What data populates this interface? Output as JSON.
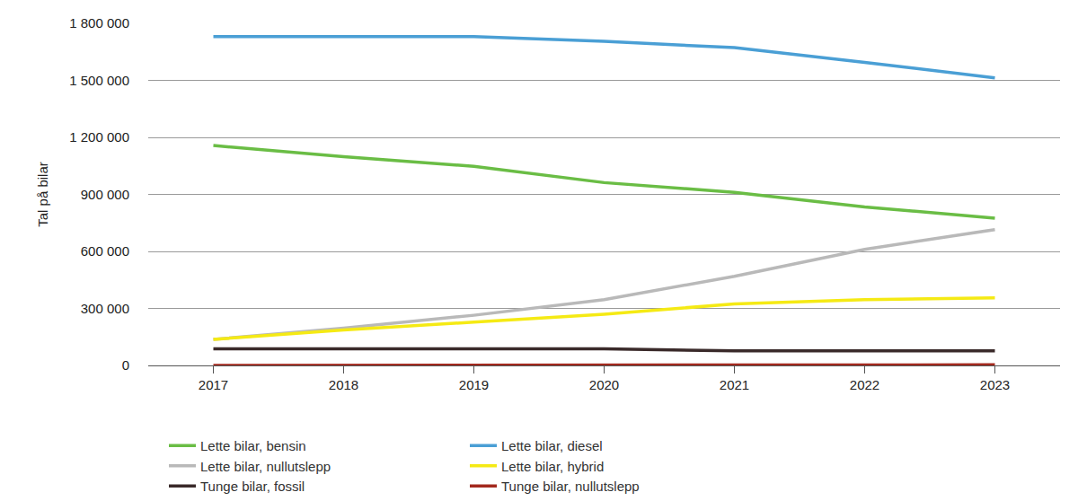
{
  "chart_data": {
    "type": "line",
    "y_label": "Tal på bilar",
    "x": [
      2017,
      2018,
      2019,
      2020,
      2021,
      2022,
      2023
    ],
    "xlim": [
      2016.5,
      2023.5
    ],
    "xticks": [
      2017,
      2018,
      2019,
      2020,
      2021,
      2022,
      2023
    ],
    "ylim": [
      0,
      1800000
    ],
    "yticks": [
      0,
      {
        "value": 300000,
        "label": "300 000"
      },
      {
        "value": 600000,
        "label": "600 000"
      },
      {
        "value": 900000,
        "label": "900 000"
      },
      {
        "value": 1200000,
        "label": "1 200 000"
      },
      {
        "value": 1500000,
        "label": "1 500 000"
      },
      {
        "value": 1800000,
        "label": "1 800 000"
      }
    ],
    "grid": true,
    "legend": "bottom",
    "series": [
      {
        "name": "Lette bilar, bensin",
        "color": "#6abd45",
        "values": [
          1157000,
          1098000,
          1048000,
          962000,
          911000,
          834000,
          775000
        ]
      },
      {
        "name": "Lette bilar, diesel",
        "color": "#4a9fd5",
        "values": [
          1730000,
          1730000,
          1730000,
          1705000,
          1672000,
          1595000,
          1513000
        ]
      },
      {
        "name": "Lette bilar, nullutslepp",
        "color": "#b9b9b9",
        "values": [
          137000,
          196000,
          264000,
          346000,
          469000,
          611000,
          715000
        ]
      },
      {
        "name": "Lette bilar, hybrid",
        "color": "#f5ea14",
        "values": [
          137000,
          187000,
          228000,
          269000,
          324000,
          346000,
          355000
        ]
      },
      {
        "name": "Tunge bilar, fossil",
        "color": "#3a2a2a",
        "values": [
          87000,
          87000,
          87000,
          87000,
          77000,
          77000,
          77000
        ]
      },
      {
        "name": "Tunge bilar, nullutslepp",
        "color": "#a3291e",
        "values": [
          0,
          1000,
          1500,
          2000,
          2500,
          3000,
          3000
        ]
      }
    ]
  }
}
